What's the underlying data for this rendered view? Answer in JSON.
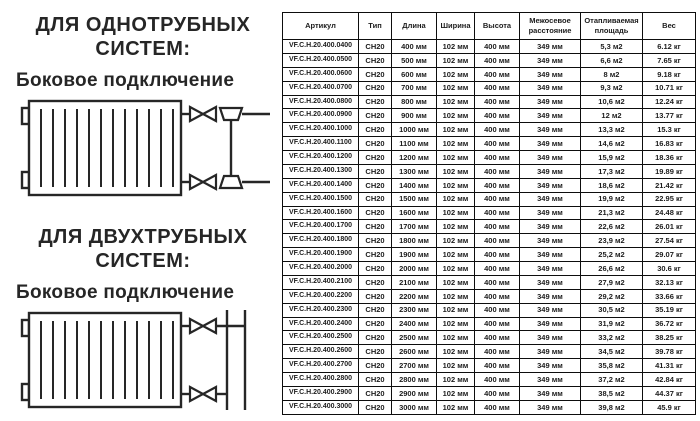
{
  "left_panel": {
    "section1": {
      "title_line1": "ДЛЯ ОДНОТРУБНЫХ",
      "title_line2": "СИСТЕМ:",
      "subtitle": "Боковое подключение"
    },
    "section2": {
      "title_line1": "ДЛЯ ДВУХТРУБНЫХ",
      "title_line2": "СИСТЕМ:",
      "subtitle": "Боковое подключение"
    },
    "diagrams": {
      "single_pipe": "radiator-side-connection-single-pipe",
      "two_pipe": "radiator-side-connection-two-pipe"
    }
  },
  "table": {
    "headers": [
      "Артикул",
      "Тип",
      "Длина",
      "Ширина",
      "Высота",
      "Межосевое расстояние",
      "Отапливаемая площадь",
      "Вес"
    ],
    "rows": [
      [
        "VF.C.H.20.400.0400",
        "CH20",
        "400 мм",
        "102 мм",
        "400 мм",
        "349 мм",
        "5,3 м2",
        "6.12 кг"
      ],
      [
        "VF.C.H.20.400.0500",
        "CH20",
        "500 мм",
        "102 мм",
        "400 мм",
        "349 мм",
        "6,6 м2",
        "7.65 кг"
      ],
      [
        "VF.C.H.20.400.0600",
        "CH20",
        "600 мм",
        "102 мм",
        "400 мм",
        "349 мм",
        "8 м2",
        "9.18 кг"
      ],
      [
        "VF.C.H.20.400.0700",
        "CH20",
        "700 мм",
        "102 мм",
        "400 мм",
        "349 мм",
        "9,3 м2",
        "10.71 кг"
      ],
      [
        "VF.C.H.20.400.0800",
        "CH20",
        "800 мм",
        "102 мм",
        "400 мм",
        "349 мм",
        "10,6 м2",
        "12.24 кг"
      ],
      [
        "VF.C.H.20.400.0900",
        "CH20",
        "900 мм",
        "102 мм",
        "400 мм",
        "349 мм",
        "12 м2",
        "13.77 кг"
      ],
      [
        "VF.C.H.20.400.1000",
        "CH20",
        "1000 мм",
        "102 мм",
        "400 мм",
        "349 мм",
        "13,3 м2",
        "15.3 кг"
      ],
      [
        "VF.C.H.20.400.1100",
        "CH20",
        "1100 мм",
        "102 мм",
        "400 мм",
        "349 мм",
        "14,6 м2",
        "16.83 кг"
      ],
      [
        "VF.C.H.20.400.1200",
        "CH20",
        "1200 мм",
        "102 мм",
        "400 мм",
        "349 мм",
        "15,9 м2",
        "18.36 кг"
      ],
      [
        "VF.C.H.20.400.1300",
        "CH20",
        "1300 мм",
        "102 мм",
        "400 мм",
        "349 мм",
        "17,3 м2",
        "19.89 кг"
      ],
      [
        "VF.C.H.20.400.1400",
        "CH20",
        "1400 мм",
        "102 мм",
        "400 мм",
        "349 мм",
        "18,6 м2",
        "21.42 кг"
      ],
      [
        "VF.C.H.20.400.1500",
        "CH20",
        "1500 мм",
        "102 мм",
        "400 мм",
        "349 мм",
        "19,9 м2",
        "22.95 кг"
      ],
      [
        "VF.C.H.20.400.1600",
        "CH20",
        "1600 мм",
        "102 мм",
        "400 мм",
        "349 мм",
        "21,3 м2",
        "24.48 кг"
      ],
      [
        "VF.C.H.20.400.1700",
        "CH20",
        "1700 мм",
        "102 мм",
        "400 мм",
        "349 мм",
        "22,6 м2",
        "26.01 кг"
      ],
      [
        "VF.C.H.20.400.1800",
        "CH20",
        "1800 мм",
        "102 мм",
        "400 мм",
        "349 мм",
        "23,9 м2",
        "27.54 кг"
      ],
      [
        "VF.C.H.20.400.1900",
        "CH20",
        "1900 мм",
        "102 мм",
        "400 мм",
        "349 мм",
        "25,2 м2",
        "29.07 кг"
      ],
      [
        "VF.C.H.20.400.2000",
        "CH20",
        "2000 мм",
        "102 мм",
        "400 мм",
        "349 мм",
        "26,6 м2",
        "30.6 кг"
      ],
      [
        "VF.C.H.20.400.2100",
        "CH20",
        "2100 мм",
        "102 мм",
        "400 мм",
        "349 мм",
        "27,9 м2",
        "32.13 кг"
      ],
      [
        "VF.C.H.20.400.2200",
        "CH20",
        "2200 мм",
        "102 мм",
        "400 мм",
        "349 мм",
        "29,2 м2",
        "33.66 кг"
      ],
      [
        "VF.C.H.20.400.2300",
        "CH20",
        "2300 мм",
        "102 мм",
        "400 мм",
        "349 мм",
        "30,5 м2",
        "35.19 кг"
      ],
      [
        "VF.C.H.20.400.2400",
        "CH20",
        "2400 мм",
        "102 мм",
        "400 мм",
        "349 мм",
        "31,9 м2",
        "36.72 кг"
      ],
      [
        "VF.C.H.20.400.2500",
        "CH20",
        "2500 мм",
        "102 мм",
        "400 мм",
        "349 мм",
        "33,2 м2",
        "38.25 кг"
      ],
      [
        "VF.C.H.20.400.2600",
        "CH20",
        "2600 мм",
        "102 мм",
        "400 мм",
        "349 мм",
        "34,5 м2",
        "39.78 кг"
      ],
      [
        "VF.C.H.20.400.2700",
        "CH20",
        "2700 мм",
        "102 мм",
        "400 мм",
        "349 мм",
        "35,8 м2",
        "41.31 кг"
      ],
      [
        "VF.C.H.20.400.2800",
        "CH20",
        "2800 мм",
        "102 мм",
        "400 мм",
        "349 мм",
        "37,2 м2",
        "42.84 кг"
      ],
      [
        "VF.C.H.20.400.2900",
        "CH20",
        "2900 мм",
        "102 мм",
        "400 мм",
        "349 мм",
        "38,5 м2",
        "44.37 кг"
      ],
      [
        "VF.C.H.20.400.3000",
        "CH20",
        "3000 мм",
        "102 мм",
        "400 мм",
        "349 мм",
        "39,8 м2",
        "45.9 кг"
      ]
    ]
  },
  "colors": {
    "ink": "#262626",
    "table_border": "#0d0d0d",
    "background": "#ffffff"
  }
}
